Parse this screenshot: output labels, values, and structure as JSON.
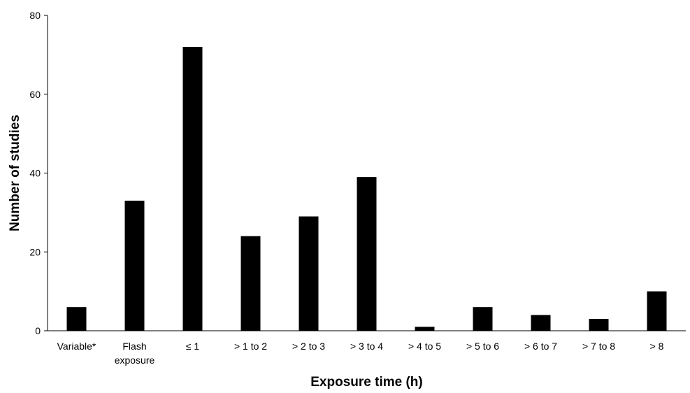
{
  "chart_data": {
    "type": "bar",
    "title": "",
    "xlabel": "Exposure time (h)",
    "ylabel": "Number of studies",
    "ylim": [
      0,
      80
    ],
    "yticks": [
      0,
      20,
      40,
      60,
      80
    ],
    "grid": false,
    "legend": "none",
    "bar_color": "#000000",
    "categories": [
      "Variable*",
      "Flash exposure",
      "≤ 1",
      "> 1 to 2",
      "> 2 to 3",
      "> 3 to 4",
      "> 4 to 5",
      "> 5 to 6",
      "> 6 to 7",
      "> 7 to 8",
      "> 8"
    ],
    "category_lines": [
      [
        "Variable*"
      ],
      [
        "Flash",
        "exposure"
      ],
      [
        "≤ 1"
      ],
      [
        "> 1 to 2"
      ],
      [
        "> 2 to 3"
      ],
      [
        "> 3 to 4"
      ],
      [
        "> 4 to 5"
      ],
      [
        "> 5 to 6"
      ],
      [
        "> 6 to 7"
      ],
      [
        "> 7 to 8"
      ],
      [
        "> 8"
      ]
    ],
    "values": [
      6,
      33,
      72,
      24,
      29,
      39,
      1,
      6,
      4,
      3,
      10
    ]
  }
}
